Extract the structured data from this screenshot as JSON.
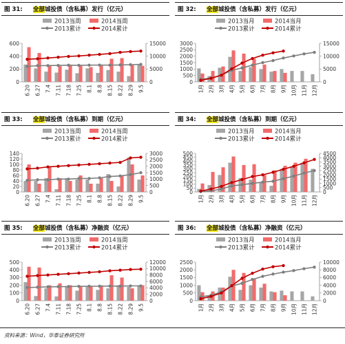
{
  "panels": [
    {
      "number": "图 31:",
      "highlight": "全部",
      "title_rest": "城投债（含私募）发行（亿元）"
    },
    {
      "number": "图 32:",
      "highlight": "全部",
      "title_rest": "城投债（含私募）发行（亿元）"
    },
    {
      "number": "图 33:",
      "highlight": "全部",
      "title_rest": "城投债（含私募）到期（亿元）"
    },
    {
      "number": "图 34:",
      "highlight": "全部",
      "title_rest": "城投债（含私募）到期（亿元）"
    },
    {
      "number": "图 35:",
      "highlight": "全部",
      "title_rest": "城投债（含私募）净融资（亿元）"
    },
    {
      "number": "图 36:",
      "highlight": "全部",
      "title_rest": "城投债（含私募）净融资（亿元）"
    }
  ],
  "footer": "资料来源：Wind，华泰证券研究所",
  "colors": {
    "bar2013": "#a6a6a6",
    "bar2014": "#f26b6b",
    "line2013": "#7f7f7f",
    "line2014": "#c00000",
    "highlight": "#f3e81c"
  },
  "chart_data": [
    {
      "type": "bar+line",
      "x_type": "weekly",
      "x": [
        "6.20",
        "6.27",
        "7.4",
        "7.11",
        "7.18",
        "7.25",
        "8.1",
        "8.8",
        "8.15",
        "8.22",
        "8.29",
        "9.5"
      ],
      "x_tick_labels": [
        "6.20",
        "6.27",
        "7.4",
        "7.11",
        "7.18",
        "7.25",
        "8.1",
        "8.8",
        "8.15",
        "8.22",
        "8.29",
        "9.5"
      ],
      "left_axis": {
        "ticks": [
          0,
          200,
          400,
          600
        ],
        "range": [
          0,
          600
        ]
      },
      "right_axis": {
        "ticks": [
          0,
          5000,
          10000,
          15000
        ],
        "range": [
          0,
          15000
        ]
      },
      "series": [
        {
          "name": "2013当周",
          "kind": "bar",
          "axis": "left",
          "color": "#a6a6a6",
          "values": [
            270,
            210,
            160,
            145,
            190,
            135,
            210,
            140,
            185,
            160,
            90,
            270
          ]
        },
        {
          "name": "2014当周",
          "kind": "bar",
          "axis": "left",
          "color": "#f26b6b",
          "values": [
            540,
            450,
            260,
            245,
            265,
            250,
            230,
            255,
            360,
            370,
            260,
            250
          ]
        },
        {
          "name": "2013累计",
          "kind": "line",
          "axis": "right",
          "color": "#7f7f7f",
          "values": [
            6000,
            6300,
            6350,
            6400,
            6500,
            6450,
            6500,
            6550,
            6500,
            6600,
            6700,
            6800
          ]
        },
        {
          "name": "2014累计",
          "kind": "line",
          "axis": "right",
          "color": "#c00000",
          "values": [
            8800,
            9000,
            9300,
            9600,
            9900,
            10100,
            10400,
            10700,
            11000,
            11500,
            11800,
            12000
          ]
        }
      ],
      "legend_position": "top"
    },
    {
      "type": "bar+line",
      "x_type": "monthly",
      "x": [
        "1月",
        "2月",
        "3月",
        "4月",
        "5月",
        "6月",
        "7月",
        "8月",
        "9月",
        "10月",
        "11月",
        "12月"
      ],
      "x_tick_labels": [
        "1月",
        "2月",
        "3月",
        "4月",
        "5月",
        "6月",
        "7月",
        "8月",
        "9月",
        "10月",
        "11月",
        "12月"
      ],
      "left_axis": {
        "ticks": [
          0,
          500,
          1000,
          1500,
          2000,
          2500,
          3000
        ],
        "range": [
          0,
          3000
        ]
      },
      "right_axis": {
        "ticks": [
          0,
          5000,
          10000,
          15000
        ],
        "range": [
          0,
          15000
        ]
      },
      "series": [
        {
          "name": "2013当月",
          "kind": "bar",
          "axis": "left",
          "color": "#a6a6a6",
          "values": [
            1050,
            450,
            1100,
            1950,
            850,
            1150,
            1000,
            800,
            1000,
            850,
            850,
            600
          ]
        },
        {
          "name": "2014当月",
          "kind": "bar",
          "axis": "left",
          "color": "#f26b6b",
          "values": [
            650,
            850,
            1200,
            2450,
            2200,
            1800,
            1350,
            850,
            700,
            null,
            null,
            null
          ]
        },
        {
          "name": "2013累计",
          "kind": "line",
          "axis": "right",
          "color": "#7f7f7f",
          "values": [
            1000,
            1500,
            2600,
            4500,
            5400,
            6500,
            7500,
            8300,
            9300,
            10100,
            10900,
            11500
          ]
        },
        {
          "name": "2014累计",
          "kind": "line",
          "axis": "right",
          "color": "#c00000",
          "values": [
            600,
            1400,
            2600,
            5100,
            7300,
            9100,
            10400,
            11300,
            12000,
            null,
            null,
            null
          ]
        }
      ],
      "legend_position": "top"
    },
    {
      "type": "bar+line",
      "x_type": "weekly",
      "x": [
        "6.20",
        "6.27",
        "7.4",
        "7.11",
        "7.18",
        "7.25",
        "8.1",
        "8.8",
        "8.15",
        "8.22",
        "8.29",
        "9.5"
      ],
      "x_tick_labels": [
        "6.20",
        "6.27",
        "7.4",
        "7.11",
        "7.18",
        "7.25",
        "8.1",
        "8.8",
        "8.15",
        "8.22",
        "8.29",
        "9.5"
      ],
      "left_axis": {
        "ticks": [
          0,
          20,
          40,
          60,
          80,
          100,
          120,
          140
        ],
        "range": [
          0,
          140
        ]
      },
      "right_axis": {
        "ticks": [
          0,
          500,
          1000,
          1500,
          2000,
          2500,
          3000
        ],
        "range": [
          0,
          3000
        ]
      },
      "series": [
        {
          "name": "2013当周",
          "kind": "bar",
          "axis": "left",
          "color": "#a6a6a6",
          "values": [
            40,
            40,
            50,
            10,
            50,
            45,
            45,
            30,
            65,
            20,
            125,
            45
          ]
        },
        {
          "name": "2014当周",
          "kind": "bar",
          "axis": "left",
          "color": "#f26b6b",
          "values": [
            100,
            30,
            90,
            50,
            40,
            60,
            30,
            50,
            40,
            60,
            100,
            60
          ]
        },
        {
          "name": "2013累计",
          "kind": "line",
          "axis": "right",
          "color": "#7f7f7f",
          "values": [
            900,
            950,
            950,
            1000,
            1000,
            1050,
            1050,
            1100,
            1200,
            1250,
            1350,
            1500
          ]
        },
        {
          "name": "2014累计",
          "kind": "line",
          "axis": "right",
          "color": "#c00000",
          "values": [
            1800,
            1850,
            1950,
            2000,
            2050,
            2100,
            2150,
            2200,
            2250,
            2300,
            2650,
            2700
          ]
        }
      ],
      "legend_position": "top"
    },
    {
      "type": "bar+line",
      "x_type": "monthly",
      "x": [
        "1月",
        "2月",
        "3月",
        "4月",
        "5月",
        "6月",
        "7月",
        "8月",
        "9月",
        "10月",
        "11月",
        "12月"
      ],
      "x_tick_labels": [
        "1月",
        "2月",
        "3月",
        "4月",
        "5月",
        "6月",
        "7月",
        "8月",
        "9月",
        "10月",
        "11月",
        "12月"
      ],
      "left_axis": {
        "ticks": [
          0,
          50,
          100,
          150,
          200,
          250,
          300,
          350,
          400,
          450,
          500
        ],
        "range": [
          0,
          500
        ]
      },
      "right_axis": {
        "ticks": [
          0,
          500,
          1000,
          1500,
          2000,
          2500,
          3000,
          3500,
          4000,
          4500
        ],
        "range": [
          0,
          4500
        ]
      },
      "series": [
        {
          "name": "2013当月",
          "kind": "bar",
          "axis": "left",
          "color": "#a6a6a6",
          "values": [
            40,
            90,
            220,
            380,
            180,
            160,
            120,
            80,
            300,
            330,
            380,
            300
          ]
        },
        {
          "name": "2014当月",
          "kind": "bar",
          "axis": "left",
          "color": "#f26b6b",
          "values": [
            110,
            260,
            320,
            460,
            350,
            360,
            220,
            280,
            340,
            380,
            430,
            null
          ]
        },
        {
          "name": "2013累计",
          "kind": "line",
          "axis": "right",
          "color": "#7f7f7f",
          "values": [
            40,
            130,
            350,
            700,
            850,
            1000,
            1150,
            1250,
            1550,
            1850,
            2200,
            2500
          ]
        },
        {
          "name": "2014累计",
          "kind": "line",
          "axis": "right",
          "color": "#c00000",
          "values": [
            100,
            350,
            650,
            1100,
            1450,
            1800,
            2000,
            2300,
            2650,
            3000,
            3400,
            3800
          ]
        }
      ],
      "legend_position": "top"
    },
    {
      "type": "bar+line",
      "x_type": "weekly",
      "x": [
        "6.20",
        "6.27",
        "7.4",
        "7.11",
        "7.18",
        "7.25",
        "8.1",
        "8.8",
        "8.15",
        "8.22",
        "8.29",
        "9.5"
      ],
      "x_tick_labels": [
        "6.20",
        "6.27",
        "7.4",
        "7.11",
        "7.18",
        "7.25",
        "8.1",
        "8.8",
        "8.15",
        "8.22",
        "8.29",
        "9.5"
      ],
      "left_axis": {
        "ticks": [
          0,
          100,
          200,
          300,
          400,
          500
        ],
        "range": [
          0,
          500
        ]
      },
      "right_axis": {
        "ticks": [
          0,
          2000,
          4000,
          6000,
          8000,
          10000,
          12000
        ],
        "range": [
          0,
          12000
        ]
      },
      "series": [
        {
          "name": "2013当周",
          "kind": "bar",
          "axis": "left",
          "color": "#a6a6a6",
          "values": [
            240,
            60,
            160,
            55,
            190,
            130,
            180,
            140,
            160,
            200,
            180,
            200
          ]
        },
        {
          "name": "2014当周",
          "kind": "bar",
          "axis": "left",
          "color": "#f26b6b",
          "values": [
            440,
            430,
            200,
            225,
            200,
            190,
            190,
            200,
            330,
            300,
            160,
            200
          ]
        },
        {
          "name": "2013累计",
          "kind": "line",
          "axis": "right",
          "color": "#7f7f7f",
          "values": [
            4100,
            4200,
            4300,
            4350,
            4400,
            4450,
            4500,
            4500,
            4550,
            4550,
            4600,
            4600
          ]
        },
        {
          "name": "2014累计",
          "kind": "line",
          "axis": "right",
          "color": "#c00000",
          "values": [
            7600,
            7800,
            8000,
            8200,
            8400,
            8600,
            8800,
            9000,
            9300,
            9500,
            9700,
            9800
          ]
        }
      ],
      "legend_position": "top"
    },
    {
      "type": "bar+line",
      "x_type": "monthly",
      "x": [
        "1月",
        "2月",
        "3月",
        "4月",
        "5月",
        "6月",
        "7月",
        "8月",
        "9月",
        "10月",
        "11月",
        "12月"
      ],
      "x_tick_labels": [
        "1月",
        "2月",
        "3月",
        "4月",
        "5月",
        "6月",
        "7月",
        "8月",
        "9月",
        "10月",
        "11月",
        "12月"
      ],
      "left_axis": {
        "ticks": [
          0,
          500,
          1000,
          1500,
          2000,
          2500
        ],
        "range": [
          0,
          2500
        ]
      },
      "right_axis": {
        "ticks": [
          0,
          2000,
          4000,
          6000,
          8000,
          10000
        ],
        "range": [
          0,
          10000
        ]
      },
      "series": [
        {
          "name": "2013当月",
          "kind": "bar",
          "axis": "left",
          "color": "#a6a6a6",
          "values": [
            1000,
            350,
            850,
            1550,
            700,
            1000,
            850,
            600,
            650,
            600,
            600,
            280
          ]
        },
        {
          "name": "2014当月",
          "kind": "bar",
          "axis": "left",
          "color": "#f26b6b",
          "values": [
            550,
            600,
            850,
            2000,
            1800,
            1400,
            1100,
            550,
            350,
            null,
            null,
            null
          ]
        },
        {
          "name": "2013累计",
          "kind": "line",
          "axis": "right",
          "color": "#7f7f7f",
          "values": [
            1000,
            1400,
            2300,
            3800,
            4500,
            5500,
            6300,
            6900,
            7400,
            7800,
            8300,
            8700
          ]
        },
        {
          "name": "2014累计",
          "kind": "line",
          "axis": "right",
          "color": "#c00000",
          "values": [
            500,
            1100,
            2000,
            3900,
            5800,
            7100,
            8200,
            8800,
            9100,
            null,
            null,
            null
          ]
        }
      ],
      "legend_position": "top"
    }
  ]
}
